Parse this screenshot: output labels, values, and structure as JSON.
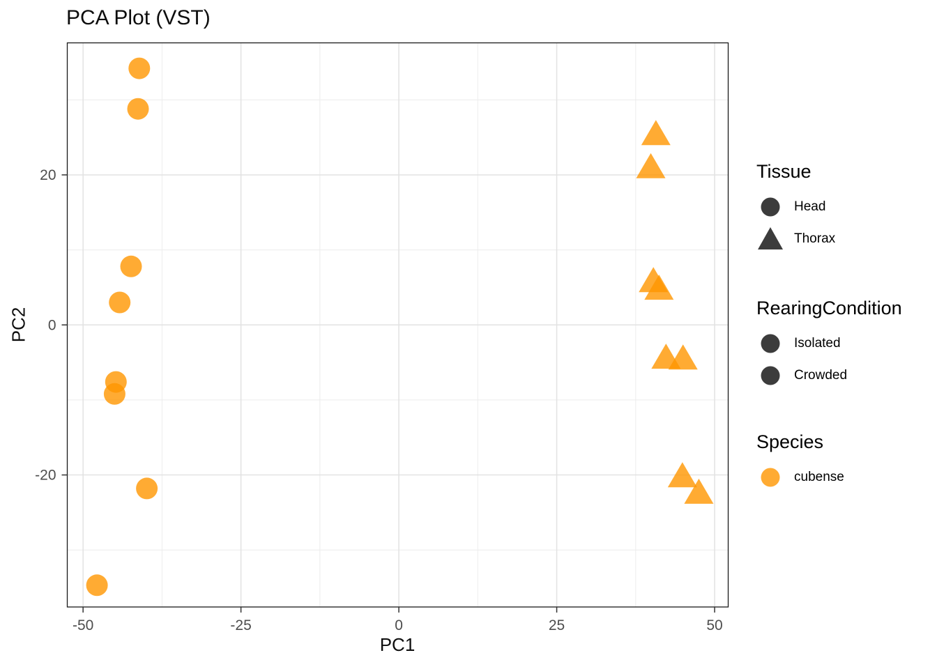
{
  "title": "PCA Plot (VST)",
  "axes": {
    "x_label": "PC1",
    "y_label": "PC2",
    "x_ticks": [
      "-50",
      "-25",
      "0",
      "25",
      "50"
    ],
    "y_ticks": [
      "20",
      "0",
      "-20"
    ]
  },
  "legend": {
    "tissue": {
      "title": "Tissue",
      "items": [
        {
          "label": "Head",
          "marker": "circle"
        },
        {
          "label": "Thorax",
          "marker": "triangle"
        }
      ]
    },
    "rearing": {
      "title": "RearingCondition",
      "items": [
        {
          "label": "Isolated",
          "marker": "circle"
        },
        {
          "label": "Crowded",
          "marker": "circle"
        }
      ]
    },
    "species": {
      "title": "Species",
      "items": [
        {
          "label": "cubense",
          "marker": "circle"
        }
      ]
    }
  },
  "colors": {
    "point": "#FF9600",
    "dark": "#1A1A1A",
    "orange": "#FF9600",
    "grid_major": "#E2E2E2",
    "grid_minor": "#ECECEC",
    "panel_border": "#1A1A1A",
    "tick": "#333333",
    "tick_label": "#4D4D4D"
  },
  "chart_data": {
    "type": "scatter",
    "title": "PCA Plot (VST)",
    "xlabel": "PC1",
    "ylabel": "PC2",
    "xlim": [
      -52.5,
      52.15
    ],
    "ylim": [
      -37.6,
      37.6
    ],
    "grid": true,
    "legend_position": "right",
    "x_tick_values": [
      -50,
      -25,
      0,
      25,
      50
    ],
    "y_tick_values": [
      20,
      0,
      -20
    ],
    "x_major_gridlines": [
      -50,
      -25,
      0,
      25,
      50
    ],
    "x_minor_gridlines": [
      -37.5,
      -12.5,
      12.5,
      37.5
    ],
    "y_major_gridlines": [
      -20,
      0,
      20
    ],
    "y_minor_gridlines": [
      -30,
      -10,
      10,
      30
    ],
    "point_alpha": 0.8,
    "species": "cubense",
    "rearing_conditions": [
      "Isolated",
      "Crowded"
    ],
    "series": [
      {
        "name": "Head",
        "marker": "circle",
        "points": [
          [
            -41.1,
            34.2
          ],
          [
            -41.3,
            28.8
          ],
          [
            -42.4,
            7.8
          ],
          [
            -44.2,
            3.0
          ],
          [
            -44.8,
            -7.6
          ],
          [
            -45.0,
            -9.2
          ],
          [
            -39.9,
            -21.8
          ],
          [
            -47.8,
            -34.7
          ]
        ]
      },
      {
        "name": "Thorax",
        "marker": "triangle",
        "points": [
          [
            40.7,
            25.4
          ],
          [
            39.9,
            21.0
          ],
          [
            40.3,
            5.8
          ],
          [
            41.2,
            4.8
          ],
          [
            42.3,
            -4.4
          ],
          [
            45.0,
            -4.5
          ],
          [
            44.9,
            -20.2
          ],
          [
            47.5,
            -22.4
          ]
        ]
      }
    ]
  }
}
